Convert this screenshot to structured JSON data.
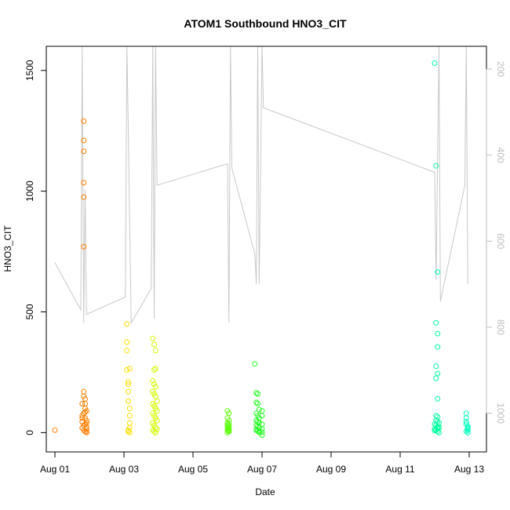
{
  "chart_data": {
    "type": "scatter",
    "title": "ATOM1 Southbound HNO3_CIT",
    "xlabel": "Date",
    "ylabel": "HNO3_CIT",
    "xlim": [
      "2016-07-31T18:00",
      "2016-08-13T12:00"
    ],
    "ylim": [
      -80,
      1600
    ],
    "x_ticks": [
      {
        "label": "Aug 01",
        "date": "2016-08-01"
      },
      {
        "label": "Aug 03",
        "date": "2016-08-03"
      },
      {
        "label": "Aug 05",
        "date": "2016-08-05"
      },
      {
        "label": "Aug 07",
        "date": "2016-08-07"
      },
      {
        "label": "Aug 09",
        "date": "2016-08-09"
      },
      {
        "label": "Aug 11",
        "date": "2016-08-11"
      },
      {
        "label": "Aug 13",
        "date": "2016-08-13"
      }
    ],
    "y_ticks": [
      0,
      500,
      1000,
      1500
    ],
    "right_axis": {
      "ticks": [
        200,
        400,
        600,
        800,
        1000
      ],
      "lim": [
        1090,
        147
      ],
      "color": "#bebebe",
      "line_color": "#c8c8c8",
      "profile_dates": [
        "2016-08-01T00:00",
        "2016-08-01T18:00",
        "2016-08-01T19:00",
        "2016-08-01T20:00",
        "2016-08-01T21:00",
        "2016-08-01T22:00",
        "2016-08-03T01:00",
        "2016-08-03T02:00",
        "2016-08-03T03:00",
        "2016-08-03T05:00",
        "2016-08-03T19:00",
        "2016-08-03T20:00",
        "2016-08-03T21:00",
        "2016-08-03T22:00",
        "2016-08-03T23:00",
        "2016-08-06T00:00",
        "2016-08-06T01:00",
        "2016-08-06T02:00",
        "2016-08-06T03:00",
        "2016-08-06T19:00",
        "2016-08-06T20:00",
        "2016-08-06T21:00",
        "2016-08-06T22:00",
        "2016-08-07T00:00",
        "2016-08-07T01:00",
        "2016-08-12T00:00",
        "2016-08-12T01:00",
        "2016-08-12T03:00",
        "2016-08-12T04:00",
        "2016-08-12T21:00",
        "2016-08-12T22:00",
        "2016-08-12T23:00"
      ],
      "profile_values": [
        650,
        760,
        145,
        790,
        480,
        770,
        730,
        145,
        340,
        790,
        710,
        145,
        780,
        145,
        470,
        420,
        790,
        145,
        430,
        630,
        700,
        145,
        700,
        145,
        290,
        440,
        690,
        145,
        740,
        470,
        145,
        700
      ]
    },
    "series": [
      {
        "color": "#ff8000",
        "x": [
          "2016-08-01T00:00",
          "2016-08-01T20:00",
          "2016-08-01T20:00",
          "2016-08-01T20:00",
          "2016-08-01T20:00",
          "2016-08-01T20:00",
          "2016-08-01T20:00",
          "2016-08-01T19:00",
          "2016-08-01T19:00",
          "2016-08-01T19:00",
          "2016-08-01T20:00",
          "2016-08-01T20:00",
          "2016-08-01T21:00",
          "2016-08-01T21:00",
          "2016-08-01T21:00",
          "2016-08-01T21:00",
          "2016-08-01T21:00",
          "2016-08-01T22:00",
          "2016-08-01T22:00",
          "2016-08-01T22:00",
          "2016-08-01T22:00",
          "2016-08-01T22:00",
          "2016-08-01T20:00",
          "2016-08-01T21:00",
          "2016-08-01T22:00",
          "2016-08-01T19:00",
          "2016-08-01T20:00",
          "2016-08-01T21:00",
          "2016-08-01T22:00",
          "2016-08-01T19:00",
          "2016-08-01T20:00"
        ],
        "y": [
          10,
          1290,
          1210,
          1165,
          1035,
          975,
          770,
          120,
          70,
          45,
          170,
          150,
          140,
          120,
          100,
          85,
          60,
          90,
          40,
          25,
          15,
          5,
          30,
          35,
          50,
          20,
          10,
          5,
          0,
          60,
          80
        ]
      },
      {
        "color": "#ffe000",
        "x": [
          "2016-08-03T02:00",
          "2016-08-03T02:00",
          "2016-08-03T02:00",
          "2016-08-03T02:00",
          "2016-08-03T03:00",
          "2016-08-03T03:00",
          "2016-08-03T03:00",
          "2016-08-03T03:00",
          "2016-08-03T04:00",
          "2016-08-03T04:00",
          "2016-08-03T04:00",
          "2016-08-03T04:00",
          "2016-08-03T03:00",
          "2016-08-03T03:00",
          "2016-08-03T04:00",
          "2016-08-03T04:00"
        ],
        "y": [
          450,
          375,
          340,
          260,
          210,
          200,
          170,
          130,
          100,
          70,
          40,
          20,
          10,
          5,
          0,
          265
        ]
      },
      {
        "color": "#d4ff00",
        "x": [
          "2016-08-03T20:00",
          "2016-08-03T21:00",
          "2016-08-03T22:00",
          "2016-08-03T21:00",
          "2016-08-03T22:00",
          "2016-08-03T20:00",
          "2016-08-03T21:00",
          "2016-08-03T22:00",
          "2016-08-03T20:00",
          "2016-08-03T21:00",
          "2016-08-03T22:00",
          "2016-08-03T23:00",
          "2016-08-03T20:00",
          "2016-08-03T21:00",
          "2016-08-03T22:00",
          "2016-08-03T23:00",
          "2016-08-03T20:00",
          "2016-08-03T21:00",
          "2016-08-03T22:00",
          "2016-08-03T23:00",
          "2016-08-03T20:00",
          "2016-08-03T21:00",
          "2016-08-03T22:00",
          "2016-08-03T23:00",
          "2016-08-03T20:00",
          "2016-08-03T21:00",
          "2016-08-03T22:00"
        ],
        "y": [
          390,
          365,
          340,
          260,
          265,
          215,
          200,
          190,
          170,
          160,
          150,
          130,
          120,
          110,
          100,
          90,
          80,
          70,
          60,
          50,
          40,
          30,
          20,
          15,
          10,
          5,
          0
        ]
      },
      {
        "color": "#55ff00",
        "x": [
          "2016-08-06T00:00",
          "2016-08-06T01:00",
          "2016-08-06T00:00",
          "2016-08-06T01:00",
          "2016-08-06T00:00",
          "2016-08-06T01:00",
          "2016-08-06T00:00",
          "2016-08-06T01:00",
          "2016-08-06T00:00",
          "2016-08-06T01:00",
          "2016-08-06T00:00",
          "2016-08-06T01:00",
          "2016-08-06T00:00",
          "2016-08-06T01:00"
        ],
        "y": [
          90,
          80,
          60,
          50,
          40,
          35,
          30,
          25,
          20,
          15,
          10,
          5,
          0,
          8
        ]
      },
      {
        "color": "#22ff22",
        "x": [
          "2016-08-06T19:00",
          "2016-08-06T20:00",
          "2016-08-06T21:00",
          "2016-08-06T20:00",
          "2016-08-06T21:00",
          "2016-08-06T22:00",
          "2016-08-06T20:00",
          "2016-08-06T21:00",
          "2016-08-06T22:00",
          "2016-08-07T00:00",
          "2016-08-06T20:00",
          "2016-08-06T21:00",
          "2016-08-06T22:00",
          "2016-08-07T00:00",
          "2016-08-06T20:00",
          "2016-08-06T21:00",
          "2016-08-06T22:00",
          "2016-08-07T00:00",
          "2016-08-06T20:00",
          "2016-08-06T21:00",
          "2016-08-06T22:00",
          "2016-08-07T00:00",
          "2016-08-06T22:00",
          "2016-08-07T00:00",
          "2016-08-06T20:00",
          "2016-08-07T00:00"
        ],
        "y": [
          285,
          165,
          160,
          125,
          120,
          95,
          80,
          70,
          60,
          90,
          50,
          45,
          40,
          35,
          30,
          25,
          20,
          15,
          10,
          8,
          5,
          2,
          0,
          -10,
          12,
          70
        ]
      },
      {
        "color": "#00ffa0",
        "x": [
          "2016-08-12T00:00",
          "2016-08-12T01:00",
          "2016-08-12T02:00",
          "2016-08-12T01:00",
          "2016-08-12T02:00",
          "2016-08-12T02:00",
          "2016-08-12T01:00",
          "2016-08-12T02:00",
          "2016-08-12T01:00",
          "2016-08-12T02:00",
          "2016-08-12T01:00",
          "2016-08-12T02:00",
          "2016-08-12T01:00",
          "2016-08-12T02:00",
          "2016-08-12T03:00",
          "2016-08-12T00:00",
          "2016-08-12T01:00",
          "2016-08-12T02:00",
          "2016-08-12T03:00",
          "2016-08-12T00:00",
          "2016-08-12T01:00",
          "2016-08-12T02:00",
          "2016-08-12T03:00",
          "2016-08-12T00:00",
          "2016-08-12T01:00",
          "2016-08-12T02:00",
          "2016-08-12T03:00"
        ],
        "y": [
          1530,
          1105,
          665,
          455,
          410,
          355,
          275,
          245,
          225,
          140,
          70,
          65,
          50,
          45,
          40,
          35,
          30,
          25,
          20,
          15,
          10,
          5,
          0,
          8,
          12,
          18,
          22
        ]
      },
      {
        "color": "#00ffc0",
        "x": [
          "2016-08-12T22:00",
          "2016-08-12T22:00",
          "2016-08-12T22:00",
          "2016-08-12T22:00",
          "2016-08-12T23:00",
          "2016-08-12T23:00",
          "2016-08-12T23:00",
          "2016-08-12T23:00",
          "2016-08-12T22:00",
          "2016-08-12T23:00"
        ],
        "y": [
          80,
          60,
          45,
          35,
          25,
          20,
          15,
          10,
          5,
          0
        ]
      }
    ]
  }
}
